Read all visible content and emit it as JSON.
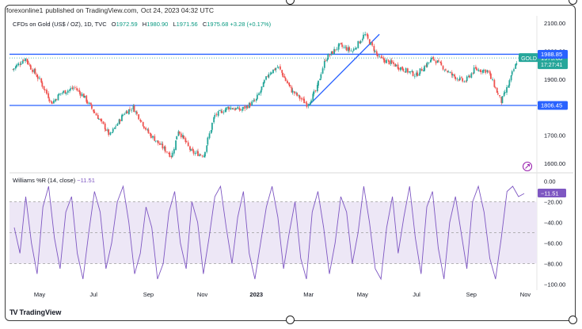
{
  "header": {
    "publisher": "forexonline1",
    "published_text": "published on TradingView.com,",
    "timestamp": "Oct 24, 2023 04:32 UTC"
  },
  "legend": {
    "symbol": "CFDs on Gold (US$ / OZ), 1D, TVC",
    "open_label": "O",
    "open": "1972.59",
    "high_label": "H",
    "high": "1980.90",
    "low_label": "L",
    "low": "1971.56",
    "close_label": "C",
    "close": "1975.68",
    "change": "+3.28 (+0.17%)"
  },
  "indicator_legend": {
    "name": "Williams %R (14, close)",
    "value": "−11.51"
  },
  "brand": {
    "name": "TradingView",
    "logo": "TV"
  },
  "colors": {
    "up": "#26a69a",
    "down": "#ef5350",
    "line": "#2962ff",
    "indicator": "#7e57c2",
    "band": "#ede7f6",
    "axis_text": "#131722"
  },
  "chart_data": [
    {
      "type": "candlestick",
      "title": "CFDs on Gold (US$ / OZ), 1D, TVC",
      "x_ticks": [
        "May",
        "Jul",
        "Sep",
        "Nov",
        "2023",
        "Mar",
        "May",
        "Jul",
        "Sep",
        "Nov"
      ],
      "y_ticks": [
        1600,
        1700,
        1800,
        1900,
        2000,
        2100
      ],
      "ylim": [
        1575,
        2120
      ],
      "price_tags": [
        {
          "label": "GOLD",
          "value": "1975.68",
          "extra": "17:27:41",
          "color": "#26a69a"
        },
        {
          "label": "",
          "value": "1988.85",
          "color": "#2962ff"
        },
        {
          "label": "",
          "value": "1806.45",
          "color": "#2962ff"
        }
      ],
      "horizontal_lines": [
        1988.85,
        1806.45
      ],
      "trendline": {
        "from": [
          "2023-03-01",
          1806
        ],
        "to": [
          "2023-05-20",
          2060
        ]
      },
      "close_path": [
        [
          "2022-04-01",
          1935
        ],
        [
          "2022-04-15",
          1975
        ],
        [
          "2022-04-22",
          1940
        ],
        [
          "2022-05-01",
          1900
        ],
        [
          "2022-05-15",
          1815
        ],
        [
          "2022-05-25",
          1850
        ],
        [
          "2022-06-10",
          1870
        ],
        [
          "2022-06-20",
          1840
        ],
        [
          "2022-07-05",
          1770
        ],
        [
          "2022-07-20",
          1700
        ],
        [
          "2022-08-05",
          1780
        ],
        [
          "2022-08-15",
          1800
        ],
        [
          "2022-09-01",
          1710
        ],
        [
          "2022-09-15",
          1665
        ],
        [
          "2022-09-28",
          1625
        ],
        [
          "2022-10-05",
          1720
        ],
        [
          "2022-10-20",
          1640
        ],
        [
          "2022-11-03",
          1630
        ],
        [
          "2022-11-15",
          1770
        ],
        [
          "2022-12-01",
          1800
        ],
        [
          "2022-12-15",
          1790
        ],
        [
          "2023-01-01",
          1825
        ],
        [
          "2023-01-15",
          1920
        ],
        [
          "2023-01-26",
          1945
        ],
        [
          "2023-02-10",
          1860
        ],
        [
          "2023-02-28",
          1810
        ],
        [
          "2023-03-10",
          1860
        ],
        [
          "2023-03-20",
          1970
        ],
        [
          "2023-04-05",
          2020
        ],
        [
          "2023-04-20",
          2000
        ],
        [
          "2023-05-04",
          2060
        ],
        [
          "2023-05-20",
          1975
        ],
        [
          "2023-06-01",
          1960
        ],
        [
          "2023-06-20",
          1930
        ],
        [
          "2023-07-01",
          1915
        ],
        [
          "2023-07-20",
          1975
        ],
        [
          "2023-08-10",
          1915
        ],
        [
          "2023-08-25",
          1890
        ],
        [
          "2023-09-05",
          1935
        ],
        [
          "2023-09-20",
          1930
        ],
        [
          "2023-10-05",
          1820
        ],
        [
          "2023-10-12",
          1870
        ],
        [
          "2023-10-24",
          1975
        ]
      ]
    },
    {
      "type": "line",
      "title": "Williams %R (14, close)",
      "y_ticks": [
        0.0,
        -20.0,
        -40.0,
        -60.0,
        -80.0,
        -100.0
      ],
      "ylim": [
        -105,
        5
      ],
      "bands": [
        -20,
        -80
      ],
      "current": -11.51,
      "series": [
        {
          "values": [
            -45,
            -70,
            -15,
            -60,
            -90,
            -25,
            -5,
            -55,
            -85,
            -30,
            -15,
            -70,
            -95,
            -50,
            -10,
            -30,
            -85,
            -60,
            -20,
            -5,
            -40,
            -90,
            -70,
            -25,
            -45,
            -95,
            -80,
            -30,
            -10,
            -60,
            -85,
            -20,
            -40,
            -90,
            -55,
            -15,
            -5,
            -45,
            -80,
            -35,
            -10,
            -70,
            -95,
            -60,
            -25,
            -5,
            -35,
            -85,
            -50,
            -20,
            -75,
            -95,
            -30,
            -10,
            -45,
            -90,
            -60,
            -15,
            -30,
            -80,
            -50,
            -5,
            -40,
            -85,
            -95,
            -45,
            -15,
            -70,
            -35,
            -5,
            -55,
            -90,
            -25,
            -10,
            -65,
            -95,
            -40,
            -15,
            -50,
            -85,
            -20,
            -5,
            -30,
            -75,
            -95,
            -55,
            -10,
            -5,
            -15,
            -12
          ]
        }
      ]
    }
  ]
}
